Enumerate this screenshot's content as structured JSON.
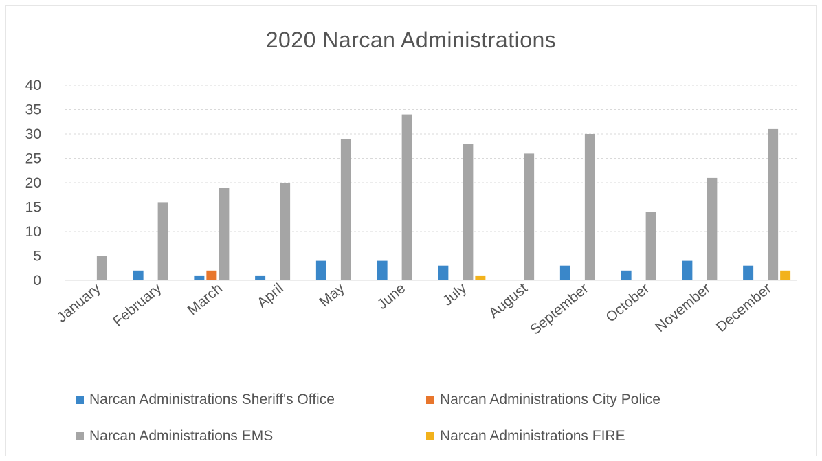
{
  "chart_data": {
    "type": "bar",
    "title": "2020 Narcan Administrations",
    "xlabel": "",
    "ylabel": "",
    "ylim": [
      0,
      40
    ],
    "yticks": [
      0,
      5,
      10,
      15,
      20,
      25,
      30,
      35,
      40
    ],
    "grid": true,
    "legend_position": "bottom",
    "categories": [
      "January",
      "February",
      "March",
      "April",
      "May",
      "June",
      "July",
      "August",
      "September",
      "October",
      "November",
      "December"
    ],
    "series": [
      {
        "name": "Narcan Administrations Sheriff's Office",
        "color": "#3a87c9",
        "values": [
          0,
          2,
          1,
          1,
          4,
          4,
          3,
          0,
          3,
          2,
          4,
          3
        ]
      },
      {
        "name": "Narcan Administrations City Police",
        "color": "#e8762c",
        "values": [
          0,
          0,
          2,
          0,
          0,
          0,
          0,
          0,
          0,
          0,
          0,
          0
        ]
      },
      {
        "name": "Narcan Administrations EMS",
        "color": "#a5a5a5",
        "values": [
          5,
          16,
          19,
          20,
          29,
          34,
          28,
          26,
          30,
          14,
          21,
          31
        ]
      },
      {
        "name": "Narcan Administrations FIRE",
        "color": "#f2b21c",
        "values": [
          0,
          0,
          0,
          0,
          0,
          0,
          1,
          0,
          0,
          0,
          0,
          2
        ]
      }
    ]
  }
}
